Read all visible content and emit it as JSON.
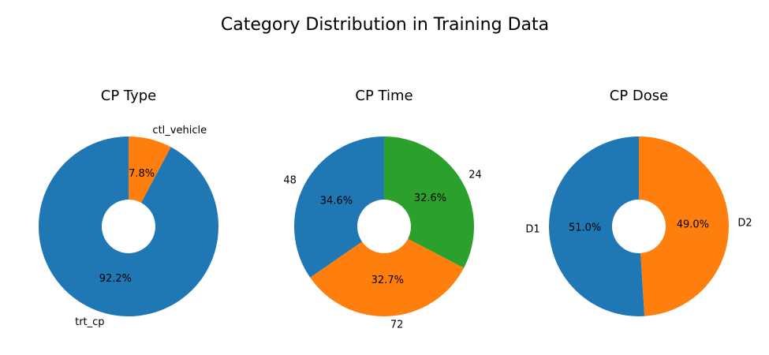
{
  "title": "Category Distribution in Training Data",
  "chart_data": [
    {
      "type": "pie",
      "title": "CP Type",
      "labels": [
        "trt_cp",
        "ctl_vehicle"
      ],
      "values": [
        92.2,
        7.8
      ],
      "autopct": [
        "92.2%",
        "7.8%"
      ],
      "colors": [
        "#1f77b4",
        "#ff7f0e"
      ],
      "donut": true
    },
    {
      "type": "pie",
      "title": "CP Time",
      "labels": [
        "48",
        "72",
        "24"
      ],
      "values": [
        34.6,
        32.7,
        32.6
      ],
      "autopct": [
        "34.6%",
        "32.7%",
        "32.6%"
      ],
      "colors": [
        "#1f77b4",
        "#ff7f0e",
        "#2ca02c"
      ],
      "donut": true
    },
    {
      "type": "pie",
      "title": "CP Dose",
      "labels": [
        "D1",
        "D2"
      ],
      "values": [
        51.0,
        49.0
      ],
      "autopct": [
        "51.0%",
        "49.0%"
      ],
      "colors": [
        "#1f77b4",
        "#ff7f0e"
      ],
      "donut": true
    }
  ]
}
